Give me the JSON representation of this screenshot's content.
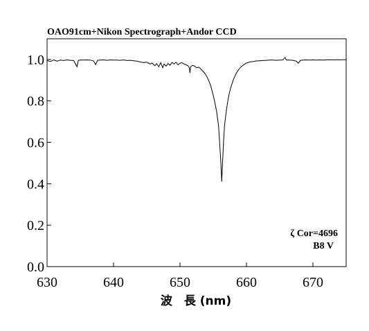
{
  "chart_data": {
    "type": "line",
    "title": "OAO91cm+Nikon Spectrograph+Andor CCD",
    "xlabel": "波　長 (nm)",
    "ylabel": "",
    "xlim": [
      630,
      675
    ],
    "ylim": [
      0.0,
      1.1
    ],
    "xticks": [
      630,
      640,
      650,
      660,
      670
    ],
    "yticks": [
      "0.0",
      "0.2",
      "0.4",
      "0.6",
      "0.8",
      "1.0"
    ],
    "annotations": [
      "ζ Cor=4696",
      "B8 V"
    ],
    "grid": false,
    "series": [
      {
        "values": [
          [
            630.0,
            0.995
          ],
          [
            630.5,
            0.99
          ],
          [
            631.0,
            0.998
          ],
          [
            631.5,
            0.992
          ],
          [
            632.0,
            0.997
          ],
          [
            632.5,
            0.995
          ],
          [
            633.0,
            0.998
          ],
          [
            633.5,
            0.996
          ],
          [
            634.0,
            0.995
          ],
          [
            634.5,
            0.965
          ],
          [
            634.7,
            0.995
          ],
          [
            635.0,
            0.998
          ],
          [
            635.5,
            0.997
          ],
          [
            636.0,
            0.998
          ],
          [
            636.5,
            0.997
          ],
          [
            637.0,
            0.993
          ],
          [
            637.3,
            0.975
          ],
          [
            637.6,
            0.996
          ],
          [
            638.0,
            0.997
          ],
          [
            638.5,
            0.998
          ],
          [
            639.0,
            0.996
          ],
          [
            639.5,
            0.998
          ],
          [
            640.0,
            0.997
          ],
          [
            640.5,
            0.997
          ],
          [
            641.0,
            0.996
          ],
          [
            641.5,
            0.998
          ],
          [
            642.0,
            0.995
          ],
          [
            642.5,
            0.996
          ],
          [
            643.0,
            0.994
          ],
          [
            643.5,
            0.992
          ],
          [
            644.0,
            0.988
          ],
          [
            644.5,
            0.985
          ],
          [
            645.0,
            0.987
          ],
          [
            645.5,
            0.978
          ],
          [
            645.8,
            0.983
          ],
          [
            646.2,
            0.97
          ],
          [
            646.5,
            0.98
          ],
          [
            646.8,
            0.965
          ],
          [
            647.1,
            0.985
          ],
          [
            647.4,
            0.96
          ],
          [
            647.6,
            0.978
          ],
          [
            647.9,
            0.968
          ],
          [
            648.2,
            0.98
          ],
          [
            648.5,
            0.972
          ],
          [
            648.8,
            0.986
          ],
          [
            649.1,
            0.978
          ],
          [
            649.4,
            0.987
          ],
          [
            649.7,
            0.975
          ],
          [
            650.0,
            0.982
          ],
          [
            650.3,
            0.985
          ],
          [
            650.6,
            0.978
          ],
          [
            650.9,
            0.975
          ],
          [
            651.2,
            0.97
          ],
          [
            651.4,
            0.96
          ],
          [
            651.5,
            0.935
          ],
          [
            651.6,
            0.965
          ],
          [
            651.9,
            0.972
          ],
          [
            652.2,
            0.968
          ],
          [
            652.5,
            0.96
          ],
          [
            652.8,
            0.963
          ],
          [
            653.1,
            0.955
          ],
          [
            653.4,
            0.945
          ],
          [
            653.7,
            0.935
          ],
          [
            654.0,
            0.92
          ],
          [
            654.3,
            0.9
          ],
          [
            654.6,
            0.875
          ],
          [
            654.9,
            0.84
          ],
          [
            655.2,
            0.8
          ],
          [
            655.5,
            0.75
          ],
          [
            655.8,
            0.68
          ],
          [
            656.0,
            0.58
          ],
          [
            656.15,
            0.5
          ],
          [
            656.28,
            0.41
          ],
          [
            656.4,
            0.5
          ],
          [
            656.55,
            0.6
          ],
          [
            656.7,
            0.68
          ],
          [
            657.0,
            0.76
          ],
          [
            657.3,
            0.82
          ],
          [
            657.6,
            0.86
          ],
          [
            658.0,
            0.9
          ],
          [
            658.4,
            0.93
          ],
          [
            658.8,
            0.95
          ],
          [
            659.2,
            0.965
          ],
          [
            659.6,
            0.975
          ],
          [
            660.0,
            0.983
          ],
          [
            660.5,
            0.988
          ],
          [
            661.0,
            0.99
          ],
          [
            661.5,
            0.993
          ],
          [
            662.0,
            0.994
          ],
          [
            662.5,
            0.995
          ],
          [
            663.0,
            0.996
          ],
          [
            663.5,
            0.997
          ],
          [
            664.0,
            0.997
          ],
          [
            664.5,
            0.996
          ],
          [
            665.0,
            0.997
          ],
          [
            665.5,
            0.998
          ],
          [
            665.8,
            1.01
          ],
          [
            666.0,
            0.997
          ],
          [
            666.5,
            0.997
          ],
          [
            667.0,
            0.996
          ],
          [
            667.5,
            0.992
          ],
          [
            667.8,
            0.982
          ],
          [
            668.1,
            0.995
          ],
          [
            668.5,
            0.997
          ],
          [
            669.0,
            0.998
          ],
          [
            669.5,
            0.997
          ],
          [
            670.0,
            0.998
          ],
          [
            670.5,
            0.997
          ],
          [
            671.0,
            0.998
          ],
          [
            671.5,
            0.997
          ],
          [
            672.0,
            0.998
          ],
          [
            672.5,
            0.999
          ],
          [
            673.0,
            0.998
          ],
          [
            673.5,
            0.999
          ],
          [
            674.0,
            0.998
          ],
          [
            674.5,
            0.999
          ],
          [
            675.0,
            0.999
          ]
        ]
      }
    ]
  }
}
